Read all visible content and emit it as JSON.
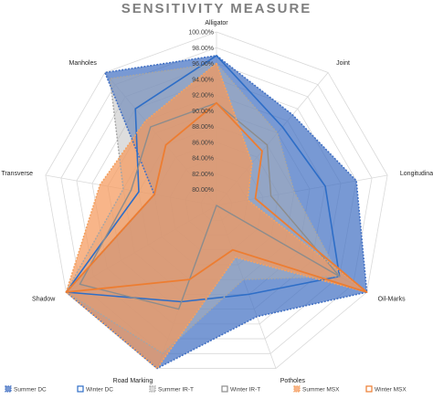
{
  "chart_data": {
    "type": "radar",
    "title": "SENSITIVITY MEASURE",
    "categories": [
      "Alligator",
      "Joint",
      "Longitudinal",
      "Oil-Marks",
      "Potholes",
      "Road Marking",
      "Shadow",
      "Transverse",
      "Manholes"
    ],
    "r_ticks": [
      "80.00%",
      "82.00%",
      "84.00%",
      "86.00%",
      "88.00%",
      "90.00%",
      "92.00%",
      "94.00%",
      "96.00%",
      "98.00%",
      "100.00%"
    ],
    "rlim": [
      78,
      100
    ],
    "series": [
      {
        "name": "Summer DC",
        "color": "#4472c4",
        "fill": "rgba(68,114,196,0.72)",
        "dash": "2,1.5",
        "width": 1.6,
        "values": [
          97,
          93,
          96,
          100,
          93,
          100,
          100,
          86,
          100
        ]
      },
      {
        "name": "Winter DC",
        "color": "#2e6ec7",
        "fill": "none",
        "dash": "",
        "width": 1.6,
        "values": [
          97,
          91,
          92,
          96,
          90,
          91,
          100,
          88,
          94
        ]
      },
      {
        "name": "Summer IR-T",
        "color": "#a5a5a5",
        "fill": "rgba(180,180,180,0.45)",
        "dash": "2,1.5",
        "width": 1.4,
        "values": [
          96,
          90,
          88,
          96,
          88,
          98,
          100,
          90,
          99
        ]
      },
      {
        "name": "Winter IR-T",
        "color": "#8c8c8c",
        "fill": "none",
        "dash": "",
        "width": 1.4,
        "values": [
          91,
          88,
          85,
          96,
          78,
          92,
          98,
          89,
          91
        ]
      },
      {
        "name": "Summer MSX",
        "color": "#f4a261",
        "fill": "rgba(245,152,92,0.72)",
        "dash": "2,1.5",
        "width": 1.6,
        "values": [
          96,
          85,
          82,
          100,
          85,
          100,
          100,
          93,
          92
        ]
      },
      {
        "name": "Winter MSX",
        "color": "#ed7d31",
        "fill": "none",
        "dash": "",
        "width": 1.8,
        "values": [
          91,
          87,
          83,
          100,
          84,
          88,
          100,
          86,
          88
        ]
      }
    ],
    "legend": "bottom",
    "grid": true
  }
}
